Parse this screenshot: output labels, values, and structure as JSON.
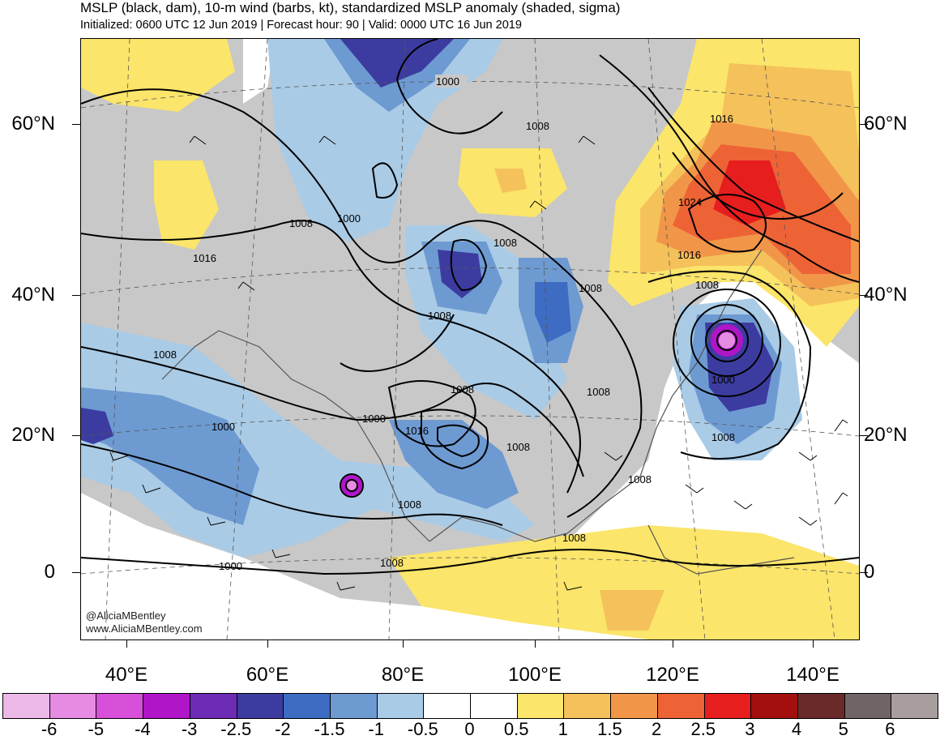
{
  "title": "MSLP (black, dam), 10-m wind (barbs, kt), standardized MSLP anomaly (shaded, sigma)",
  "subtitle": "Initialized: 0600 UTC 12 Jun 2019 | Forecast hour: 90 | Valid: 0000 UTC 16 Jun 2019",
  "credit": {
    "handle": "@AliciaMBentley",
    "website": "www.AliciaMBentley.com"
  },
  "lat_labels": [
    "60°N",
    "40°N",
    "20°N",
    "0"
  ],
  "lon_labels": [
    "40°E",
    "60°E",
    "80°E",
    "100°E",
    "120°E",
    "140°E"
  ],
  "contour_labels": [
    "1000",
    "1008",
    "1008",
    "1016",
    "1008",
    "1000",
    "1008",
    "1016",
    "1024",
    "1016",
    "1008",
    "1008",
    "1008",
    "1008",
    "1008",
    "1000",
    "1016",
    "1000",
    "1008",
    "1008",
    "1000",
    "1008",
    "1008",
    "1008",
    "1000",
    "1008"
  ],
  "colorbar": {
    "labels": [
      "-6",
      "-5",
      "-4",
      "-3",
      "-2.5",
      "-2",
      "-1.5",
      "-1",
      "-0.5",
      "0",
      "0.5",
      "1",
      "1.5",
      "2",
      "2.5",
      "3",
      "4",
      "5",
      "6"
    ],
    "colors": [
      "#ebb8e8",
      "#e58ce2",
      "#d84fd9",
      "#b015c8",
      "#6e2bb5",
      "#3c3ca0",
      "#3d6cc2",
      "#6e9ad2",
      "#a9cbe6",
      "#ffffff",
      "#ffffff",
      "#fbe56a",
      "#f5c15a",
      "#f19648",
      "#ed6336",
      "#e61e1e",
      "#a30f0f",
      "#6b2a2a",
      "#716464",
      "#a89e9e"
    ]
  },
  "map_colors": {
    "neutral_land": "#c8c8c8",
    "ocean": "#ffffff",
    "contour": "#000000"
  }
}
